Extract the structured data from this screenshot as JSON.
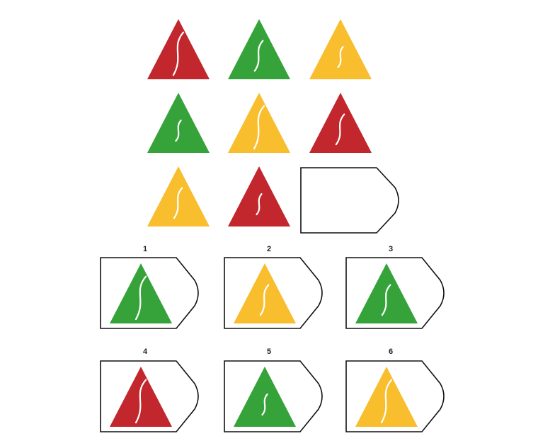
{
  "puzzle": {
    "colors": {
      "red": "#C1272D",
      "green": "#35A33A",
      "yellow": "#F8BE2E",
      "squiggle": "#FFFFFF",
      "outline": "#111111"
    },
    "grid": [
      {
        "color": "red",
        "squiggle": "large"
      },
      {
        "color": "green",
        "squiggle": "medium"
      },
      {
        "color": "yellow",
        "squiggle": "small"
      },
      {
        "color": "green",
        "squiggle": "small"
      },
      {
        "color": "yellow",
        "squiggle": "large"
      },
      {
        "color": "red",
        "squiggle": "medium"
      },
      {
        "color": "yellow",
        "squiggle": "medium"
      },
      {
        "color": "red",
        "squiggle": "small"
      },
      {
        "color": "none",
        "squiggle": "none",
        "missing": true
      }
    ],
    "options": [
      {
        "label": "1",
        "color": "green",
        "squiggle": "large"
      },
      {
        "label": "2",
        "color": "yellow",
        "squiggle": "medium"
      },
      {
        "label": "3",
        "color": "green",
        "squiggle": "medium"
      },
      {
        "label": "4",
        "color": "red",
        "squiggle": "large"
      },
      {
        "label": "5",
        "color": "green",
        "squiggle": "small"
      },
      {
        "label": "6",
        "color": "yellow",
        "squiggle": "large"
      }
    ]
  }
}
